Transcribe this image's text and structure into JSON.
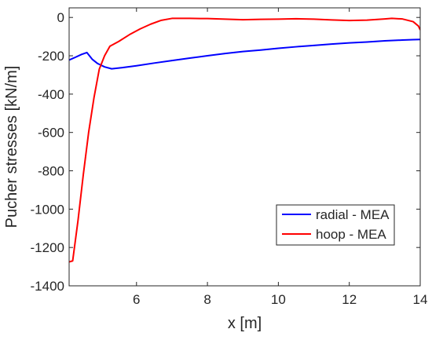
{
  "chart_data": {
    "type": "line",
    "title": "",
    "xlabel": "x [m]",
    "ylabel": "Pucher stresses [kN/m]",
    "xlim": [
      4.1,
      14
    ],
    "ylim": [
      -1400,
      50
    ],
    "xticks": [
      6,
      8,
      10,
      12,
      14
    ],
    "xtick_labels": [
      "6",
      "8",
      "10",
      "12",
      "14"
    ],
    "yticks": [
      0,
      -200,
      -400,
      -600,
      -800,
      -1000,
      -1200,
      -1400
    ],
    "ytick_labels": [
      "0",
      "-200",
      "-400",
      "-600",
      "-800",
      "-1000",
      "-1200",
      "-1400"
    ],
    "grid": false,
    "legend_position": "lower-right",
    "series": [
      {
        "name": "radial - MEA",
        "color": "#0000ff",
        "x": [
          4.1,
          4.25,
          4.45,
          4.6,
          4.75,
          4.9,
          5.1,
          5.3,
          5.6,
          6.0,
          6.5,
          7.0,
          7.5,
          8.0,
          8.5,
          9.0,
          9.5,
          10.0,
          10.5,
          11.0,
          11.5,
          12.0,
          12.5,
          13.0,
          13.5,
          13.8,
          14.0
        ],
        "y": [
          -222,
          -210,
          -193,
          -183,
          -218,
          -240,
          -258,
          -268,
          -262,
          -252,
          -238,
          -225,
          -212,
          -200,
          -188,
          -178,
          -170,
          -161,
          -153,
          -146,
          -139,
          -133,
          -128,
          -122,
          -118,
          -116,
          -115
        ]
      },
      {
        "name": "hoop - MEA",
        "color": "#ff0000",
        "x": [
          4.1,
          4.2,
          4.35,
          4.5,
          4.65,
          4.8,
          4.95,
          5.1,
          5.25,
          5.5,
          5.8,
          6.1,
          6.4,
          6.7,
          7.0,
          7.5,
          8.0,
          8.5,
          9.0,
          9.5,
          10.0,
          10.5,
          11.0,
          11.5,
          12.0,
          12.5,
          13.0,
          13.2,
          13.5,
          13.8,
          13.95,
          14.0
        ],
        "y": [
          -1275,
          -1270,
          -1060,
          -820,
          -600,
          -420,
          -270,
          -200,
          -150,
          -125,
          -90,
          -60,
          -35,
          -15,
          -5,
          -5,
          -6,
          -9,
          -12,
          -10,
          -9,
          -7,
          -9,
          -13,
          -16,
          -14,
          -8,
          -5,
          -8,
          -22,
          -45,
          -65
        ]
      }
    ]
  }
}
